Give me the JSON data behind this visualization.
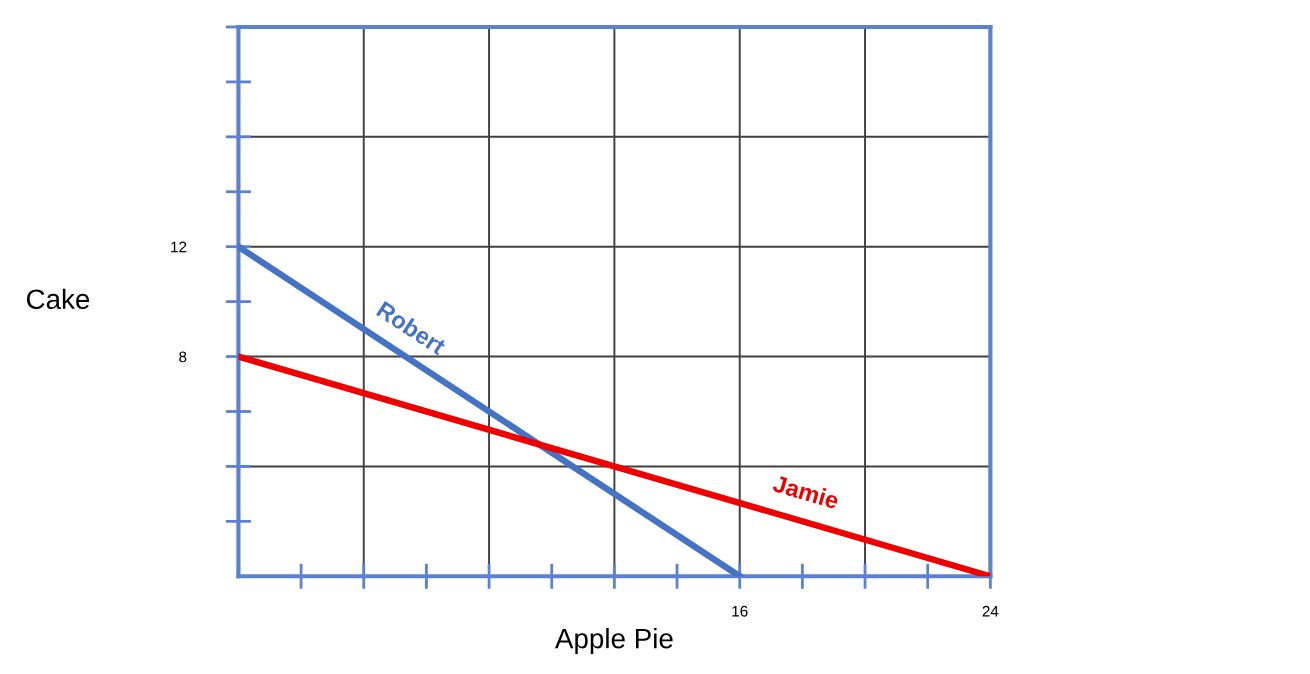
{
  "chart_data": {
    "type": "line",
    "xlabel": "Apple Pie",
    "ylabel": "Cake",
    "series": [
      {
        "name": "Robert",
        "color": "#4472c4",
        "x": [
          0,
          16
        ],
        "values": [
          12,
          0
        ]
      },
      {
        "name": "Jamie",
        "color": "#ee0000",
        "x": [
          0,
          24
        ],
        "values": [
          8,
          0
        ]
      }
    ],
    "xlim": [
      0,
      24
    ],
    "ylim": [
      0,
      20
    ],
    "xticks": [
      {
        "value": 2,
        "label": null
      },
      {
        "value": 4,
        "label": null
      },
      {
        "value": 6,
        "label": null
      },
      {
        "value": 8,
        "label": null
      },
      {
        "value": 10,
        "label": null
      },
      {
        "value": 12,
        "label": null
      },
      {
        "value": 14,
        "label": null
      },
      16,
      {
        "value": 18,
        "label": null
      },
      {
        "value": 20,
        "label": null
      },
      {
        "value": 22,
        "label": null
      },
      24
    ],
    "yticks": [
      {
        "value": 2,
        "label": null
      },
      {
        "value": 4,
        "label": null
      },
      {
        "value": 6,
        "label": null
      },
      8,
      {
        "value": 10,
        "label": null
      },
      12,
      {
        "value": 14,
        "label": null
      },
      {
        "value": 16,
        "label": null
      },
      {
        "value": 18,
        "label": null
      },
      {
        "value": 20,
        "label": null
      }
    ],
    "grid": true,
    "legend": false,
    "marker": "none",
    "line_style": "solid"
  }
}
